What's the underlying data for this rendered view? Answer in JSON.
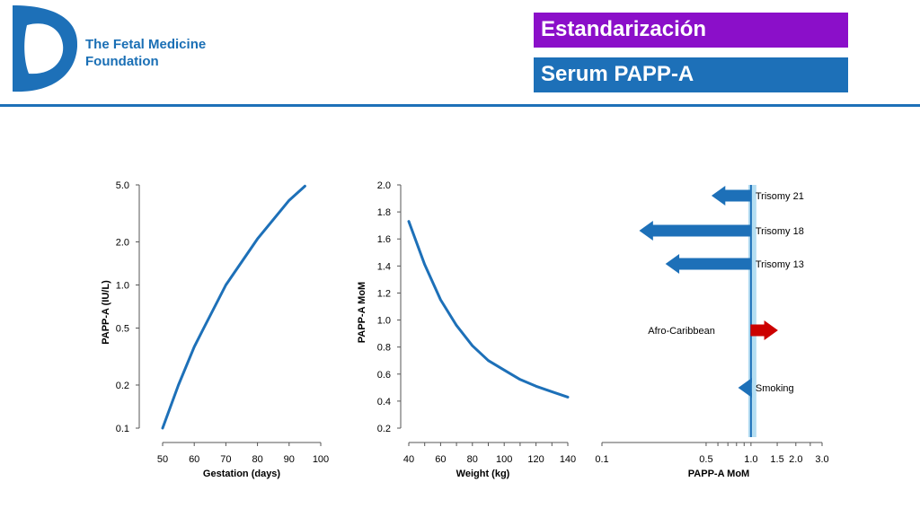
{
  "header": {
    "org_line1": "The Fetal Medicine",
    "org_line2": "Foundation",
    "title": "Estandarización",
    "subtitle": "Serum PAPP-A"
  },
  "colors": {
    "brand_blue": "#1d70b8",
    "title_purple": "#8b0fc9",
    "curve": "#1d70b8",
    "decrease_arrow": "#1d70b8",
    "increase_arrow": "#cc0000",
    "reference_band": "#a8d8f0"
  },
  "chart_data": [
    {
      "type": "line",
      "xlabel": "Gestation (days)",
      "ylabel": "PAPP-A (IU/L)",
      "yscale": "log",
      "xlim": [
        50,
        100
      ],
      "ylim": [
        0.1,
        5.0
      ],
      "xticks": [
        50,
        60,
        70,
        80,
        90,
        100
      ],
      "yticks": [
        0.1,
        0.2,
        0.5,
        1.0,
        2.0,
        5.0
      ],
      "ytick_labels": [
        "0.1",
        "0.2",
        "0.5",
        "1.0",
        "2.0",
        "5.0"
      ],
      "x": [
        50,
        55,
        60,
        63,
        70,
        80,
        90,
        95
      ],
      "y": [
        0.1,
        0.2,
        0.37,
        0.5,
        1.0,
        2.1,
        3.9,
        4.9
      ]
    },
    {
      "type": "line",
      "xlabel": "Weight (kg)",
      "ylabel": "PAPP-A MoM",
      "xlim": [
        40,
        140
      ],
      "ylim": [
        0.2,
        2.0
      ],
      "xticks": [
        40,
        60,
        80,
        100,
        120,
        140
      ],
      "yticks": [
        0.2,
        0.4,
        0.6,
        0.8,
        1.0,
        1.2,
        1.4,
        1.6,
        1.8,
        2.0
      ],
      "ytick_labels": [
        "0.2",
        "0.4",
        "0.6",
        "0.8",
        "1.0",
        "1.2",
        "1.4",
        "1.6",
        "1.8",
        "2.0"
      ],
      "x": [
        40,
        50,
        60,
        70,
        80,
        90,
        100,
        110,
        120,
        130,
        140
      ],
      "y": [
        1.73,
        1.41,
        1.15,
        0.96,
        0.81,
        0.7,
        0.63,
        0.56,
        0.51,
        0.47,
        0.43
      ]
    },
    {
      "type": "bar",
      "orientation": "horizontal",
      "xlabel": "PAPP-A MoM",
      "xscale": "log",
      "xlim": [
        0.1,
        3.0
      ],
      "xticks": [
        0.1,
        0.5,
        1.0,
        1.5,
        2.0,
        3.0
      ],
      "xtick_labels": [
        "0.1",
        "0.5",
        "1.0",
        "1.5",
        "2.0",
        "3.0"
      ],
      "reference": 1.0,
      "categories": [
        "Trisomy 21",
        "Trisomy 18",
        "Trisomy 13",
        "Afro-Caribbean",
        "Smoking"
      ],
      "values": [
        0.55,
        0.18,
        0.27,
        1.5,
        0.83
      ]
    }
  ]
}
